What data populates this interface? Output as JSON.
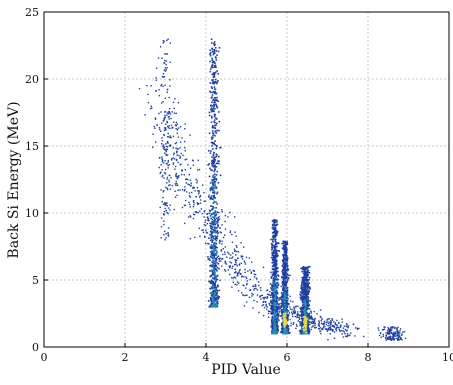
{
  "chart_data": {
    "type": "scatter",
    "title": "",
    "xlabel": "PID Value",
    "ylabel": "Back Si Energy (MeV)",
    "xlim": [
      0,
      10
    ],
    "ylim": [
      0,
      25
    ],
    "x_ticks": [
      0,
      2,
      4,
      6,
      8,
      10
    ],
    "y_ticks": [
      0,
      5,
      10,
      15,
      20,
      25
    ],
    "x_tick_labels": [
      "0",
      "2",
      "4",
      "6",
      "8",
      "10"
    ],
    "y_tick_labels": [
      "0",
      "5",
      "10",
      "15",
      "20",
      "25"
    ],
    "grid": true,
    "colors": {
      "points": "#1f3fa0",
      "dense_core": "#2a8fb0",
      "hot_core": "#e8d84a",
      "grid": "#c8c8c8"
    },
    "clusters": [
      {
        "x_center": 3.0,
        "x_spread": 0.12,
        "y_min": 8,
        "y_max": 23,
        "density": "low"
      },
      {
        "x_center": 4.2,
        "x_spread": 0.1,
        "y_min": 3,
        "y_max": 23,
        "density": "high"
      },
      {
        "x_center": 5.7,
        "x_spread": 0.07,
        "y_min": 1,
        "y_max": 9.5,
        "density": "high"
      },
      {
        "x_center": 5.95,
        "x_spread": 0.07,
        "y_min": 1,
        "y_max": 8,
        "density": "high"
      },
      {
        "x_center": 6.45,
        "x_spread": 0.09,
        "y_min": 1,
        "y_max": 6,
        "density": "high"
      },
      {
        "x_center": 8.6,
        "x_spread": 0.25,
        "y_min": 0.5,
        "y_max": 1.5,
        "density": "low"
      }
    ],
    "band": {
      "description_points": [
        [
          2.8,
          18
        ],
        [
          3.5,
          12
        ],
        [
          4.5,
          7
        ],
        [
          5.5,
          3.5
        ],
        [
          6.5,
          2
        ],
        [
          7.5,
          1.2
        ]
      ]
    }
  }
}
